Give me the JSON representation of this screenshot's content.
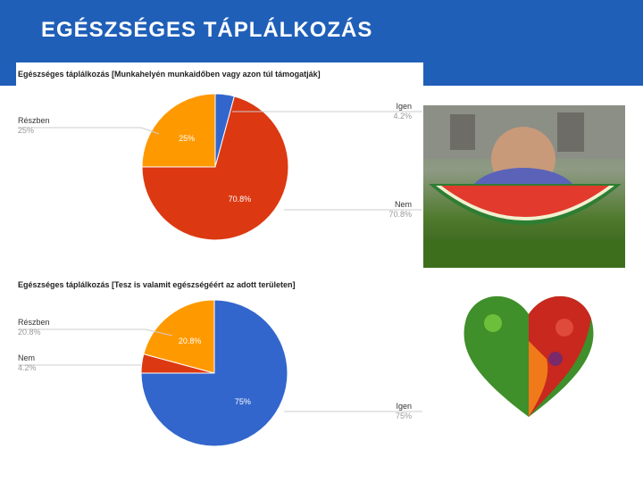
{
  "slide": {
    "title": "EGÉSZSÉGES TÁPLÁLKOZÁS"
  },
  "colors": {
    "blue": "#3366cc",
    "red": "#dc3912",
    "orange": "#ff9900",
    "header": "#1f5fb8"
  },
  "chart_data": [
    {
      "type": "pie",
      "title": "Egészséges táplálkozás [Munkahelyén munkaidőben vagy azon túl támogatják]",
      "slices": [
        {
          "name": "Igen",
          "value": 4.2,
          "legend_pct": "4.2%",
          "inner_label": ""
        },
        {
          "name": "Nem",
          "value": 70.8,
          "legend_pct": "70.8%",
          "inner_label": "70.8%"
        },
        {
          "name": "Részben",
          "value": 25,
          "legend_pct": "25%",
          "inner_label": "25%"
        }
      ]
    },
    {
      "type": "pie",
      "title": "Egészséges táplálkozás [Tesz is valamit egészségéért az adott területen]",
      "slices": [
        {
          "name": "Igen",
          "value": 75,
          "legend_pct": "75%",
          "inner_label": "75%"
        },
        {
          "name": "Nem",
          "value": 4.2,
          "legend_pct": "4.2%",
          "inner_label": ""
        },
        {
          "name": "Részben",
          "value": 20.8,
          "legend_pct": "20.8%",
          "inner_label": "20.8%"
        }
      ]
    }
  ],
  "images": {
    "photo1": "baby-eating-watermelon-photo",
    "photo2": "vegetable-heart-photo"
  }
}
